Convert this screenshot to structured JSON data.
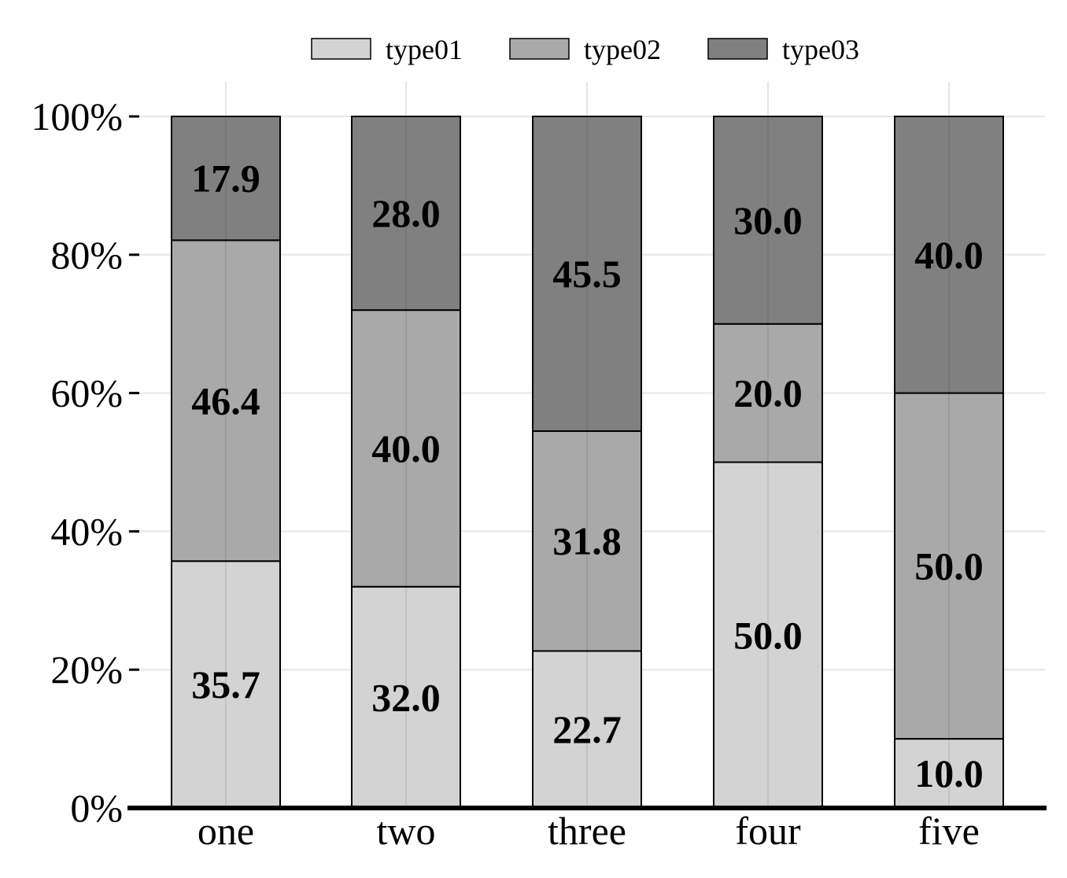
{
  "chart_data": {
    "type": "bar",
    "stacked": true,
    "percent": true,
    "categories": [
      "one",
      "two",
      "three",
      "four",
      "five"
    ],
    "series": [
      {
        "name": "type01",
        "values": [
          35.7,
          32.0,
          22.7,
          50.0,
          10.0
        ],
        "color": "#d3d3d3"
      },
      {
        "name": "type02",
        "values": [
          46.4,
          40.0,
          31.8,
          20.0,
          50.0
        ],
        "color": "#a9a9a9"
      },
      {
        "name": "type03",
        "values": [
          17.9,
          28.0,
          45.5,
          30.0,
          40.0
        ],
        "color": "#808080"
      }
    ],
    "yticks": [
      "0%",
      "20%",
      "40%",
      "60%",
      "80%",
      "100%"
    ],
    "ylim": [
      0,
      100
    ],
    "grid": true,
    "legend_position": "top"
  }
}
